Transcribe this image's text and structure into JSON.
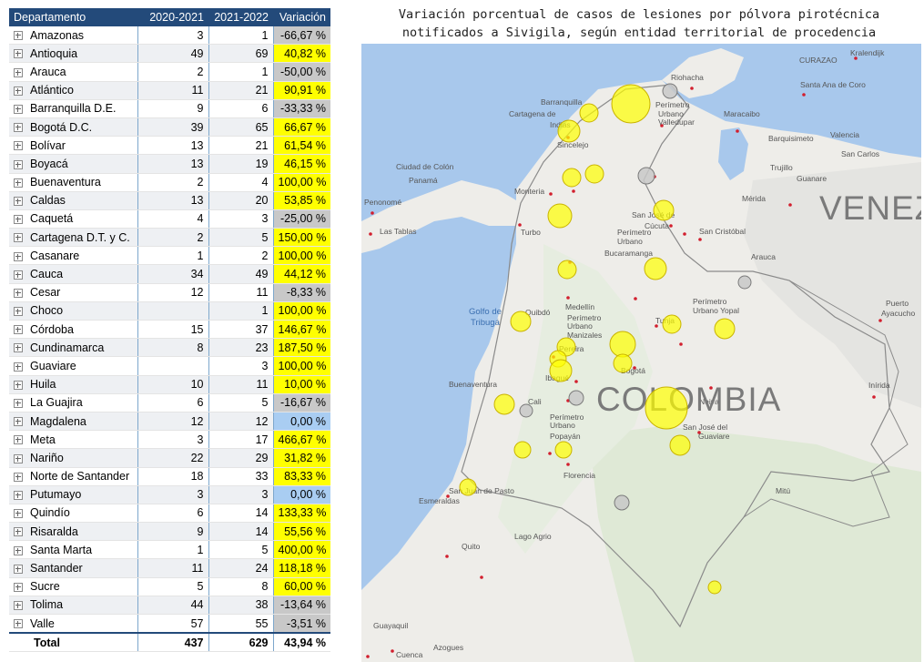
{
  "table": {
    "headers": [
      "Departamento",
      "2020-2021",
      "2021-2022",
      "Variación"
    ],
    "rows": [
      {
        "name": "Amazonas",
        "y1": "3",
        "y2": "1",
        "var": "-66,67 %",
        "color": "#c8c8c8"
      },
      {
        "name": "Antioquia",
        "y1": "49",
        "y2": "69",
        "var": "40,82 %",
        "color": "#ffff00"
      },
      {
        "name": "Arauca",
        "y1": "2",
        "y2": "1",
        "var": "-50,00 %",
        "color": "#c8c8c8"
      },
      {
        "name": "Atlántico",
        "y1": "11",
        "y2": "21",
        "var": "90,91 %",
        "color": "#ffff00"
      },
      {
        "name": "Barranquilla D.E.",
        "y1": "9",
        "y2": "6",
        "var": "-33,33 %",
        "color": "#c8c8c8"
      },
      {
        "name": "Bogotá D.C.",
        "y1": "39",
        "y2": "65",
        "var": "66,67 %",
        "color": "#ffff00"
      },
      {
        "name": "Bolívar",
        "y1": "13",
        "y2": "21",
        "var": "61,54 %",
        "color": "#ffff00"
      },
      {
        "name": "Boyacá",
        "y1": "13",
        "y2": "19",
        "var": "46,15 %",
        "color": "#ffff00"
      },
      {
        "name": "Buenaventura",
        "y1": "2",
        "y2": "4",
        "var": "100,00 %",
        "color": "#ffff00"
      },
      {
        "name": "Caldas",
        "y1": "13",
        "y2": "20",
        "var": "53,85 %",
        "color": "#ffff00"
      },
      {
        "name": "Caquetá",
        "y1": "4",
        "y2": "3",
        "var": "-25,00 %",
        "color": "#c8c8c8"
      },
      {
        "name": "Cartagena D.T. y C.",
        "y1": "2",
        "y2": "5",
        "var": "150,00 %",
        "color": "#ffff00"
      },
      {
        "name": "Casanare",
        "y1": "1",
        "y2": "2",
        "var": "100,00 %",
        "color": "#ffff00"
      },
      {
        "name": "Cauca",
        "y1": "34",
        "y2": "49",
        "var": "44,12 %",
        "color": "#ffff00"
      },
      {
        "name": "Cesar",
        "y1": "12",
        "y2": "11",
        "var": "-8,33 %",
        "color": "#c8c8c8"
      },
      {
        "name": "Choco",
        "y1": "",
        "y2": "1",
        "var": "100,00 %",
        "color": "#ffff00"
      },
      {
        "name": "Córdoba",
        "y1": "15",
        "y2": "37",
        "var": "146,67 %",
        "color": "#ffff00"
      },
      {
        "name": "Cundinamarca",
        "y1": "8",
        "y2": "23",
        "var": "187,50 %",
        "color": "#ffff00"
      },
      {
        "name": "Guaviare",
        "y1": "",
        "y2": "3",
        "var": "100,00 %",
        "color": "#ffff00"
      },
      {
        "name": "Huila",
        "y1": "10",
        "y2": "11",
        "var": "10,00 %",
        "color": "#ffff00"
      },
      {
        "name": "La Guajira",
        "y1": "6",
        "y2": "5",
        "var": "-16,67 %",
        "color": "#c8c8c8"
      },
      {
        "name": "Magdalena",
        "y1": "12",
        "y2": "12",
        "var": "0,00 %",
        "color": "#a9cdf2"
      },
      {
        "name": "Meta",
        "y1": "3",
        "y2": "17",
        "var": "466,67 %",
        "color": "#ffff00"
      },
      {
        "name": "Nariño",
        "y1": "22",
        "y2": "29",
        "var": "31,82 %",
        "color": "#ffff00"
      },
      {
        "name": "Norte de Santander",
        "y1": "18",
        "y2": "33",
        "var": "83,33 %",
        "color": "#ffff00"
      },
      {
        "name": "Putumayo",
        "y1": "3",
        "y2": "3",
        "var": "0,00 %",
        "color": "#a9cdf2"
      },
      {
        "name": "Quindío",
        "y1": "6",
        "y2": "14",
        "var": "133,33 %",
        "color": "#ffff00"
      },
      {
        "name": "Risaralda",
        "y1": "9",
        "y2": "14",
        "var": "55,56 %",
        "color": "#ffff00"
      },
      {
        "name": "Santa Marta",
        "y1": "1",
        "y2": "5",
        "var": "400,00 %",
        "color": "#ffff00"
      },
      {
        "name": "Santander",
        "y1": "11",
        "y2": "24",
        "var": "118,18 %",
        "color": "#ffff00"
      },
      {
        "name": "Sucre",
        "y1": "5",
        "y2": "8",
        "var": "60,00 %",
        "color": "#ffff00"
      },
      {
        "name": "Tolima",
        "y1": "44",
        "y2": "38",
        "var": "-13,64 %",
        "color": "#c8c8c8"
      },
      {
        "name": "Valle",
        "y1": "57",
        "y2": "55",
        "var": "-3,51 %",
        "color": "#c8c8c8"
      }
    ],
    "total": {
      "label": "Total",
      "y1": "437",
      "y2": "629",
      "var": "43,94 %"
    }
  },
  "map": {
    "title": "Variación porcentual de casos de lesiones por pólvora pirotécnica notificados a Sivigila, según entidad territorial de procedencia",
    "country_label": "COLOMBIA",
    "neighbor_label": "VENEZ",
    "sea_labels": [
      "Golfo de",
      "Tribugá"
    ],
    "place_labels": [
      "Kralendijk",
      "CURAZAO",
      "Riohacha",
      "Santa Ana de Coro",
      "Barranquilla",
      "Cartagena de",
      "Indias",
      "Perímetro",
      "Urbano",
      "Valledupar",
      "Maracaibo",
      "Barquisimeto",
      "Valencia",
      "San Carlos",
      "Trujillo",
      "Guanare",
      "Mérida",
      "Ciudad de Colón",
      "Panamá",
      "Penonomé",
      "Las Tablas",
      "Monteria",
      "Sincelejo",
      "Turbo",
      "San José de",
      "Cúcuta",
      "San Cristóbal",
      "Perímetro",
      "Urbano",
      "Bucaramanga",
      "Arauca",
      "Puerto",
      "Ayacucho",
      "Quibdó",
      "Medellín",
      "Perímetro",
      "Urbano",
      "Manizales",
      "Pereira",
      "Tunja",
      "Perímetro",
      "Urbano Yopal",
      "Ibagué",
      "Bogotá",
      "Neiva",
      "Buenaventura",
      "Cali",
      "Perímetro",
      "Urbano",
      "Popayán",
      "San José del",
      "Guaviare",
      "Inírida",
      "Florencia",
      "San Juan de Pasto",
      "Esmeraldas",
      "Mitú",
      "Quito",
      "Lago Agrio",
      "Guayaquil",
      "Cuenca",
      "Azogues"
    ],
    "bubble_colors": {
      "increase": "#ffff00",
      "decrease": "#c8c8c8",
      "no_change": "#a9cdf2"
    }
  }
}
